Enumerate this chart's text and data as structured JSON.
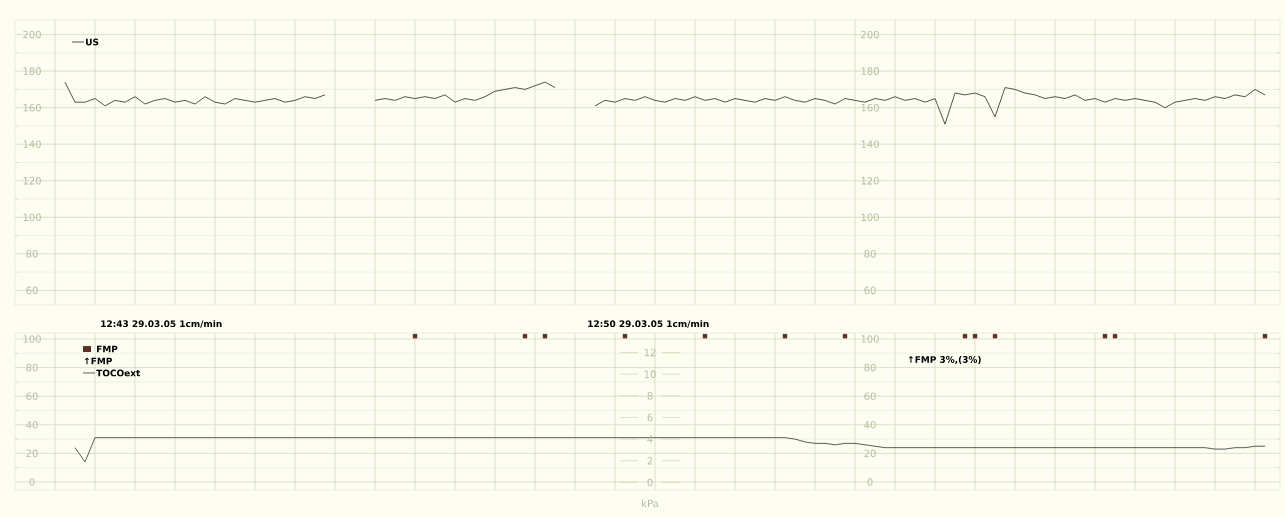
{
  "chart_data": [
    {
      "type": "line",
      "categories": [
        null,
        null,
        null,
        null,
        null,
        null,
        null,
        null,
        null,
        null,
        null,
        null,
        null,
        null,
        null,
        null,
        null,
        null,
        null,
        null,
        null,
        null,
        null,
        null,
        null,
        null,
        null,
        null,
        null,
        null,
        null,
        null,
        null,
        null,
        null,
        null,
        null,
        null,
        null,
        null,
        null,
        null,
        null,
        null,
        null,
        null,
        null,
        null,
        null,
        null,
        null,
        null,
        null,
        null,
        null,
        null,
        null,
        null,
        null,
        null,
        null,
        null,
        null,
        null,
        null,
        null,
        null,
        null,
        null,
        null,
        null,
        null,
        null,
        null,
        null,
        null,
        null,
        null,
        null,
        null,
        null,
        null,
        null,
        null,
        null,
        null,
        null,
        null,
        null,
        null,
        null,
        null,
        null,
        null,
        null,
        null,
        null,
        null,
        null,
        null,
        null,
        null,
        null,
        null,
        null,
        null,
        null,
        null,
        null,
        null,
        null,
        null,
        null,
        null,
        null,
        null,
        null,
        null,
        null,
        null,
        null,
        null,
        null,
        null,
        null,
        null,
        null
      ],
      "series": [
        {
          "name": "US",
          "color": "#2a2a2a",
          "values": [
            null,
            null,
            null,
            null,
            null,
            174,
            163,
            163,
            165,
            161,
            164,
            163,
            166,
            162,
            164,
            165,
            163,
            164,
            162,
            166,
            163,
            162,
            165,
            164,
            163,
            164,
            165,
            163,
            164,
            166,
            165,
            167,
            null,
            null,
            null,
            null,
            null,
            null,
            null,
            null,
            null,
            null,
            null,
            null,
            null,
            null,
            null,
            null,
            null,
            null,
            null,
            null,
            null,
            null,
            null,
            null,
            null,
            null,
            null,
            null,
            null,
            null,
            null,
            null,
            null,
            null,
            null,
            null,
            null,
            null,
            null,
            null,
            null,
            null,
            null,
            null,
            null,
            null,
            null,
            null,
            null,
            null,
            null,
            null,
            null,
            null,
            null,
            null,
            null,
            null,
            null,
            null,
            null,
            null,
            null,
            null,
            null,
            null,
            null,
            null,
            null,
            null,
            null,
            null,
            null,
            null,
            null,
            null,
            null,
            null,
            null,
            null,
            null,
            null,
            null,
            null,
            null,
            null,
            null,
            null,
            null,
            null,
            null,
            null,
            null,
            null,
            null
          ]
        },
        {
          "color": "#2a2a2a",
          "values": [
            null,
            null,
            null,
            null,
            null,
            null,
            null,
            null,
            null,
            null,
            null,
            null,
            null,
            null,
            null,
            null,
            null,
            null,
            null,
            null,
            null,
            null,
            null,
            null,
            null,
            null,
            null,
            null,
            null,
            null,
            null,
            null,
            null,
            null,
            null,
            null,
            164,
            165,
            164,
            166,
            165,
            166,
            165,
            167,
            163,
            165,
            164,
            166,
            169,
            170,
            171,
            170,
            172,
            174,
            171,
            null,
            null,
            null,
            null,
            null,
            null,
            null,
            null,
            null,
            null,
            null,
            null,
            null,
            null,
            null,
            null,
            null,
            null,
            null,
            null,
            null,
            null,
            null,
            null,
            null,
            null,
            null,
            null,
            null,
            null,
            null,
            null,
            null,
            null,
            null,
            null,
            null,
            null,
            null,
            null,
            null,
            null,
            null,
            null,
            null,
            null,
            null,
            null,
            null,
            null,
            null,
            null,
            null,
            null,
            null,
            null,
            null,
            null,
            null,
            null,
            null,
            null,
            null,
            null,
            null,
            null,
            null,
            null,
            null,
            null,
            null,
            null
          ]
        },
        {
          "color": "#2a2a2a",
          "values": [
            null,
            null,
            null,
            null,
            null,
            null,
            null,
            null,
            null,
            null,
            null,
            null,
            null,
            null,
            null,
            null,
            null,
            null,
            null,
            null,
            null,
            null,
            null,
            null,
            null,
            null,
            null,
            null,
            null,
            null,
            null,
            null,
            null,
            null,
            null,
            null,
            null,
            null,
            null,
            null,
            null,
            null,
            null,
            null,
            null,
            null,
            null,
            null,
            null,
            null,
            null,
            null,
            null,
            null,
            null,
            null,
            null,
            null,
            161,
            164,
            163,
            165,
            164,
            166,
            164,
            163,
            165,
            164,
            166,
            164,
            165,
            163,
            165,
            164,
            163,
            165,
            164,
            166,
            164,
            163,
            165,
            164,
            162,
            165,
            164,
            163,
            165,
            164,
            166,
            164,
            165,
            163,
            165,
            151,
            168,
            167,
            168,
            166,
            155,
            171,
            170,
            168,
            167,
            165,
            166,
            165,
            167,
            164,
            165,
            163,
            165,
            164,
            165,
            164,
            163,
            160,
            163,
            164,
            165,
            164,
            166,
            165,
            167,
            166,
            170,
            167,
            null
          ]
        }
      ],
      "ylim": [
        52,
        208
      ],
      "yticks": [
        60,
        80,
        100,
        120,
        140,
        160,
        180,
        200
      ],
      "y2lim": [
        52,
        208
      ],
      "y2ticks": [
        60,
        80,
        100,
        120,
        140,
        160,
        180,
        200
      ],
      "grid": true,
      "legend": "top left",
      "tick_labels": "y"
    },
    {
      "type": "line",
      "categories": [
        null,
        null,
        null,
        null,
        null,
        null,
        null,
        null,
        null,
        null,
        null,
        null,
        null,
        null,
        null,
        null,
        null,
        null,
        null,
        null,
        null,
        null,
        null,
        null,
        null,
        null,
        null,
        null,
        null,
        null,
        null,
        null,
        null,
        null,
        null,
        null,
        null,
        null,
        null,
        null,
        null,
        null,
        null,
        null,
        null,
        null,
        null,
        null,
        null,
        null,
        null,
        null,
        null,
        null,
        null,
        null,
        null,
        null,
        null,
        null,
        null,
        null,
        null,
        null,
        null,
        null,
        null,
        null,
        null,
        null,
        null,
        null,
        null,
        null,
        null,
        null,
        null,
        null,
        null,
        null,
        null,
        null,
        null,
        null,
        null,
        null,
        null,
        null,
        null,
        null,
        null,
        null,
        null,
        null,
        null,
        null,
        null,
        null,
        null,
        null,
        null,
        null,
        null,
        null,
        null,
        null,
        null,
        null,
        null,
        null,
        null,
        null,
        null,
        null,
        null,
        null,
        null,
        null,
        null,
        null,
        null,
        null,
        null,
        null,
        null,
        null,
        null
      ],
      "series": [
        {
          "name": "FMP",
          "type": "scatter",
          "marker": "square",
          "color": "#5a3426",
          "values": [
            null,
            null,
            null,
            null,
            null,
            null,
            null,
            null,
            null,
            null,
            null,
            null,
            null,
            null,
            null,
            null,
            null,
            null,
            null,
            null,
            null,
            null,
            null,
            null,
            null,
            null,
            null,
            null,
            null,
            null,
            null,
            null,
            null,
            null,
            null,
            null,
            null,
            null,
            null,
            null,
            102,
            null,
            null,
            null,
            null,
            null,
            null,
            null,
            null,
            null,
            null,
            102,
            null,
            102,
            null,
            null,
            null,
            null,
            null,
            null,
            null,
            102,
            null,
            null,
            null,
            null,
            null,
            null,
            null,
            102,
            null,
            null,
            null,
            null,
            null,
            null,
            null,
            102,
            null,
            null,
            null,
            null,
            null,
            102,
            null,
            null,
            null,
            null,
            null,
            null,
            null,
            null,
            null,
            null,
            null,
            102,
            102,
            null,
            102,
            null,
            null,
            null,
            null,
            null,
            null,
            null,
            null,
            null,
            null,
            102,
            102,
            null,
            null,
            null,
            null,
            null,
            null,
            null,
            null,
            null,
            null,
            null,
            null,
            null,
            null,
            102,
            null
          ]
        },
        {
          "name": "TOCOext",
          "color": "#333333",
          "values": [
            null,
            null,
            null,
            null,
            null,
            null,
            24,
            14,
            31,
            31,
            31,
            31,
            31,
            31,
            31,
            31,
            31,
            31,
            31,
            31,
            31,
            31,
            31,
            31,
            31,
            31,
            31,
            31,
            31,
            31,
            31,
            31,
            31,
            31,
            31,
            31,
            31,
            31,
            31,
            31,
            31,
            31,
            31,
            31,
            31,
            31,
            31,
            31,
            31,
            31,
            31,
            31,
            31,
            31,
            31,
            31,
            31,
            31,
            31,
            31,
            31,
            31,
            31,
            31,
            31,
            31,
            31,
            31,
            31,
            31,
            31,
            31,
            31,
            31,
            31,
            31,
            31,
            31,
            30,
            28,
            27,
            27,
            26,
            27,
            27,
            26,
            25,
            24,
            24,
            24,
            24,
            24,
            24,
            24,
            24,
            24,
            24,
            24,
            24,
            24,
            24,
            24,
            24,
            24,
            24,
            24,
            24,
            24,
            24,
            24,
            24,
            24,
            24,
            24,
            24,
            24,
            24,
            24,
            24,
            24,
            23,
            23,
            24,
            24,
            25,
            25,
            null
          ]
        }
      ],
      "ylim": [
        -5.6,
        104.2
      ],
      "yticks": [
        0,
        20,
        40,
        60,
        80,
        100
      ],
      "y2lim": [
        -5.6,
        104.2
      ],
      "y2ticks": [
        0,
        20,
        40,
        60,
        80,
        100
      ],
      "y3lim": [
        -0.7,
        13.8
      ],
      "y3ticks": [
        0,
        2,
        4,
        6,
        8,
        10,
        12
      ],
      "y3label": "kPa",
      "annotations": [
        "12:43  29.03.05  1cm/min",
        "12:50  29.03.05  1cm/min",
        "↑FMP",
        "↑FMP  3%,(3%)"
      ],
      "grid": true,
      "legend": "top left",
      "tick_labels": "y"
    }
  ]
}
